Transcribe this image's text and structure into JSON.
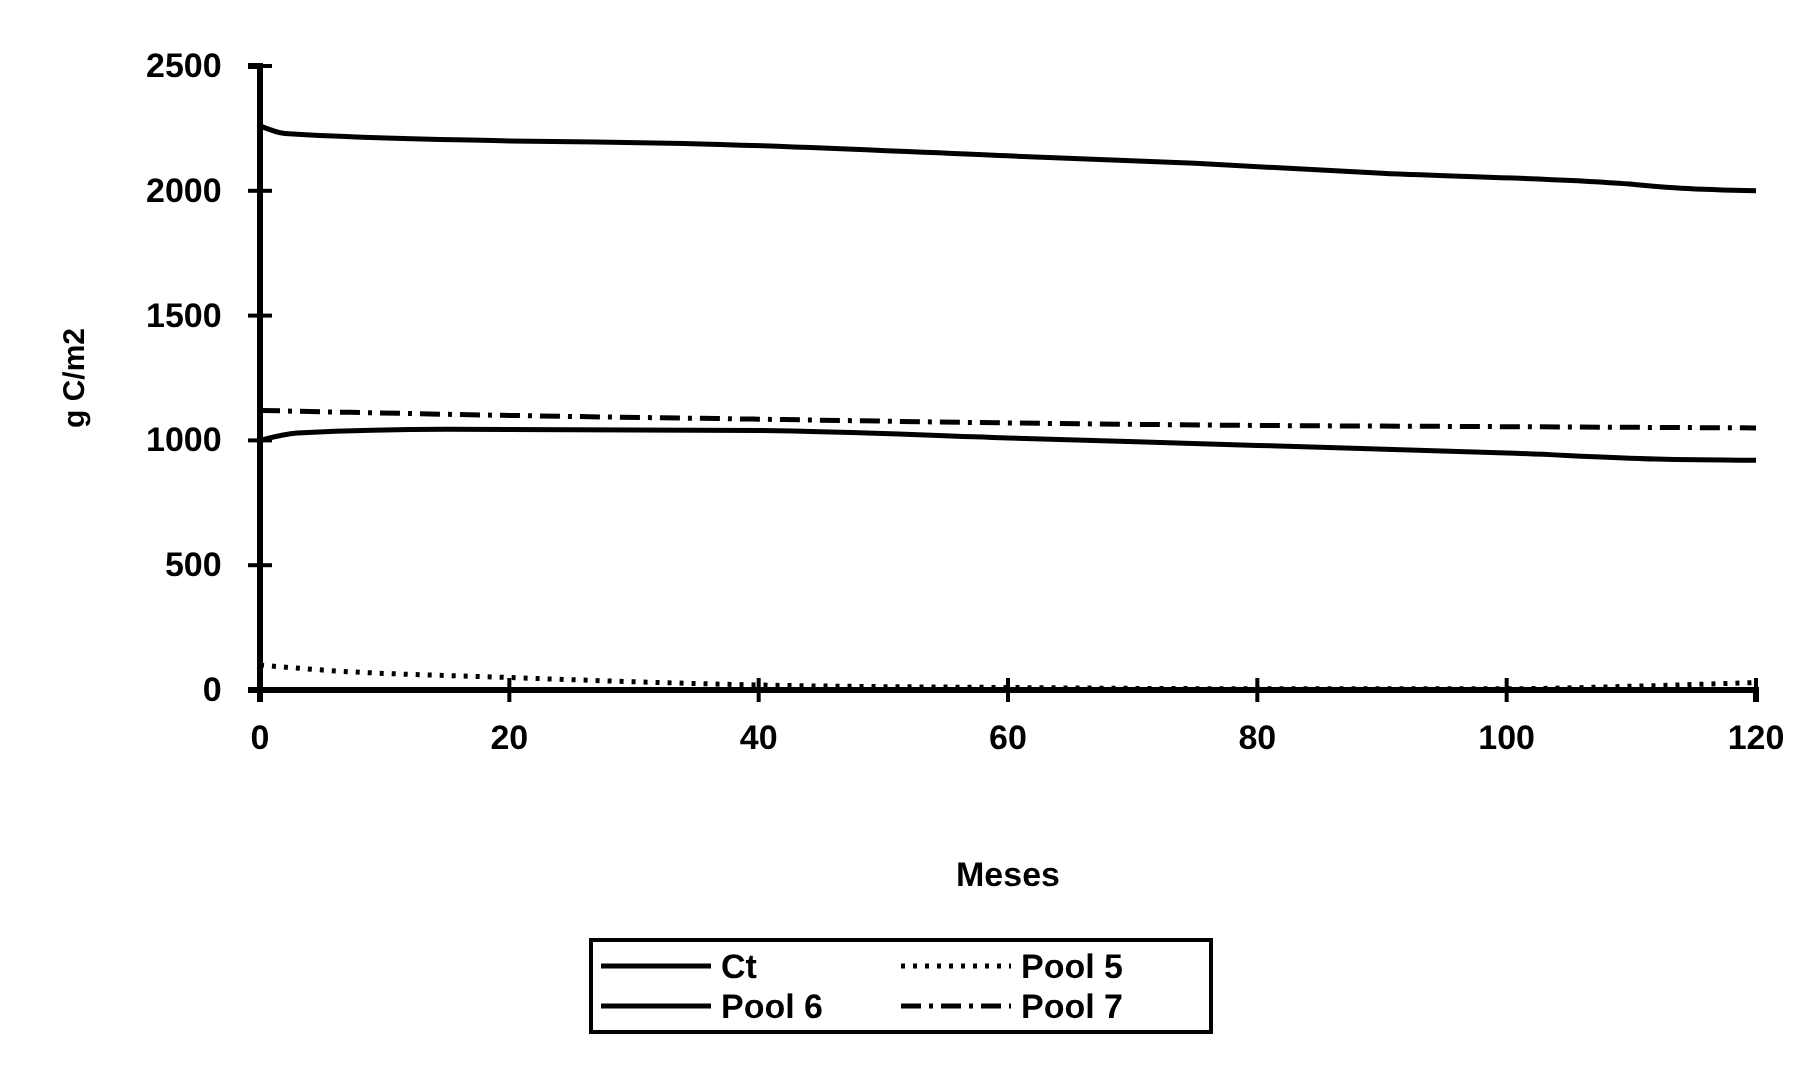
{
  "chart_data": {
    "type": "line",
    "xlabel": "Meses",
    "ylabel": "g C/m2",
    "xlim": [
      0,
      120
    ],
    "ylim": [
      0,
      2500
    ],
    "xticks": [
      0,
      20,
      40,
      60,
      80,
      100,
      120
    ],
    "yticks": [
      0,
      500,
      1000,
      1500,
      2000,
      2500
    ],
    "legend": "bottom",
    "grid": false,
    "marker": "none",
    "series": [
      {
        "name": "Ct",
        "color": "#000000",
        "line_style": "solid",
        "x": [
          0,
          2,
          20,
          34,
          60,
          75,
          90,
          109,
          114,
          120
        ],
        "values": [
          2260,
          2230,
          2200,
          2190,
          2140,
          2110,
          2070,
          2030,
          2010,
          2000
        ]
      },
      {
        "name": "Pool 5",
        "color": "#000000",
        "line_style": "dotted",
        "x": [
          0,
          5,
          20,
          40,
          60,
          80,
          100,
          110,
          120
        ],
        "values": [
          100,
          80,
          50,
          20,
          10,
          5,
          5,
          15,
          30
        ]
      },
      {
        "name": "Pool 6",
        "color": "#000000",
        "line_style": "solid",
        "x": [
          0,
          3,
          15,
          40,
          60,
          80,
          100,
          112,
          120
        ],
        "values": [
          1000,
          1030,
          1045,
          1040,
          1010,
          980,
          950,
          925,
          920
        ]
      },
      {
        "name": "Pool 7",
        "color": "#000000",
        "line_style": "dashdot",
        "x": [
          0,
          20,
          40,
          60,
          80,
          100,
          120
        ],
        "values": [
          1120,
          1100,
          1085,
          1070,
          1060,
          1055,
          1050
        ]
      }
    ]
  }
}
